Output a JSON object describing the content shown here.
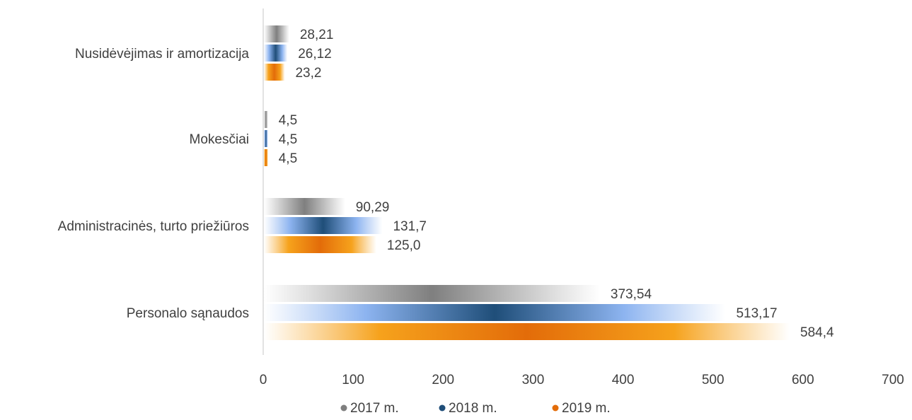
{
  "chart_data": {
    "type": "bar",
    "orientation": "horizontal",
    "categories": [
      "Nusidėvėjimas ir amortizacija",
      "Mokesčiai",
      "Administracinės, turto priežiūros",
      "Personalo sąnaudos"
    ],
    "series": [
      {
        "name": "2017 m.",
        "color": "#7f7f7f",
        "values": [
          28.21,
          4.5,
          90.29,
          373.54
        ],
        "labels": [
          "28,21",
          "4,5",
          "90,29",
          "373,54"
        ]
      },
      {
        "name": "2018 m.",
        "color": "#1f4e79",
        "values": [
          26.12,
          4.5,
          131.7,
          513.17
        ],
        "labels": [
          "26,12",
          "4,5",
          "131,7",
          "513,17"
        ]
      },
      {
        "name": "2019 m.",
        "color": "#e36c09",
        "values": [
          23.2,
          4.5,
          125.0,
          584.4
        ],
        "labels": [
          "23,2",
          "4,5",
          "125,0",
          "584,4"
        ]
      }
    ],
    "xlim": [
      0,
      700
    ],
    "xticks": [
      "0",
      "100",
      "200",
      "300",
      "400",
      "500",
      "600",
      "700"
    ],
    "grid": false,
    "legend_position": "bottom"
  }
}
